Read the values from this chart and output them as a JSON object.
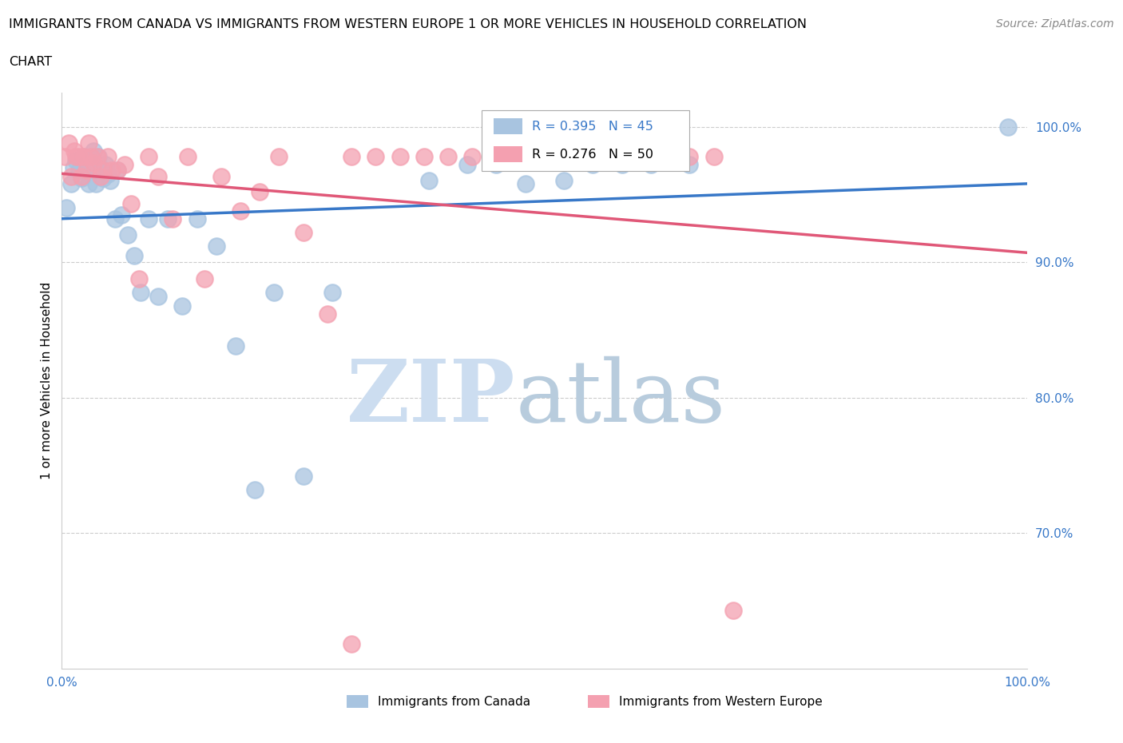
{
  "title_line1": "IMMIGRANTS FROM CANADA VS IMMIGRANTS FROM WESTERN EUROPE 1 OR MORE VEHICLES IN HOUSEHOLD CORRELATION",
  "title_line2": "CHART",
  "source": "Source: ZipAtlas.com",
  "ylabel": "1 or more Vehicles in Household",
  "xlim": [
    0.0,
    1.0
  ],
  "ylim": [
    0.6,
    1.025
  ],
  "canada_R": 0.395,
  "canada_N": 45,
  "europe_R": 0.276,
  "europe_N": 50,
  "canada_color": "#a8c4e0",
  "europe_color": "#f4a0b0",
  "trendline_canada_color": "#3878c8",
  "trendline_europe_color": "#e05878",
  "legend_label_canada": "Immigrants from Canada",
  "legend_label_europe": "Immigrants from Western Europe",
  "canada_x": [
    0.005,
    0.01,
    0.012,
    0.015,
    0.018,
    0.02,
    0.022,
    0.025,
    0.028,
    0.03,
    0.033,
    0.035,
    0.038,
    0.04,
    0.043,
    0.045,
    0.048,
    0.05,
    0.055,
    0.058,
    0.062,
    0.068,
    0.075,
    0.082,
    0.09,
    0.1,
    0.11,
    0.125,
    0.14,
    0.16,
    0.18,
    0.2,
    0.22,
    0.25,
    0.28,
    0.38,
    0.42,
    0.45,
    0.48,
    0.52,
    0.55,
    0.58,
    0.61,
    0.65,
    0.98
  ],
  "canada_y": [
    0.94,
    0.958,
    0.97,
    0.975,
    0.968,
    0.962,
    0.978,
    0.968,
    0.958,
    0.972,
    0.982,
    0.958,
    0.978,
    0.97,
    0.962,
    0.972,
    0.965,
    0.96,
    0.932,
    0.968,
    0.935,
    0.92,
    0.905,
    0.878,
    0.932,
    0.875,
    0.932,
    0.868,
    0.932,
    0.912,
    0.838,
    0.732,
    0.878,
    0.742,
    0.878,
    0.96,
    0.972,
    0.972,
    0.958,
    0.96,
    0.972,
    0.972,
    0.972,
    0.972,
    1.0
  ],
  "europe_x": [
    0.003,
    0.007,
    0.01,
    0.013,
    0.015,
    0.018,
    0.02,
    0.023,
    0.025,
    0.028,
    0.03,
    0.033,
    0.037,
    0.04,
    0.043,
    0.048,
    0.052,
    0.058,
    0.065,
    0.072,
    0.08,
    0.09,
    0.1,
    0.115,
    0.13,
    0.148,
    0.165,
    0.185,
    0.205,
    0.225,
    0.25,
    0.275,
    0.3,
    0.325,
    0.35,
    0.375,
    0.4,
    0.425,
    0.45,
    0.475,
    0.5,
    0.525,
    0.55,
    0.575,
    0.6,
    0.625,
    0.65,
    0.675,
    0.695,
    0.3
  ],
  "europe_y": [
    0.978,
    0.988,
    0.963,
    0.982,
    0.978,
    0.978,
    0.963,
    0.978,
    0.968,
    0.988,
    0.978,
    0.973,
    0.978,
    0.963,
    0.968,
    0.978,
    0.968,
    0.968,
    0.972,
    0.943,
    0.888,
    0.978,
    0.963,
    0.932,
    0.978,
    0.888,
    0.963,
    0.938,
    0.952,
    0.978,
    0.922,
    0.862,
    0.978,
    0.978,
    0.978,
    0.978,
    0.978,
    0.978,
    0.978,
    0.978,
    0.978,
    0.978,
    0.978,
    0.978,
    0.978,
    0.978,
    0.978,
    0.978,
    0.643,
    0.618
  ]
}
